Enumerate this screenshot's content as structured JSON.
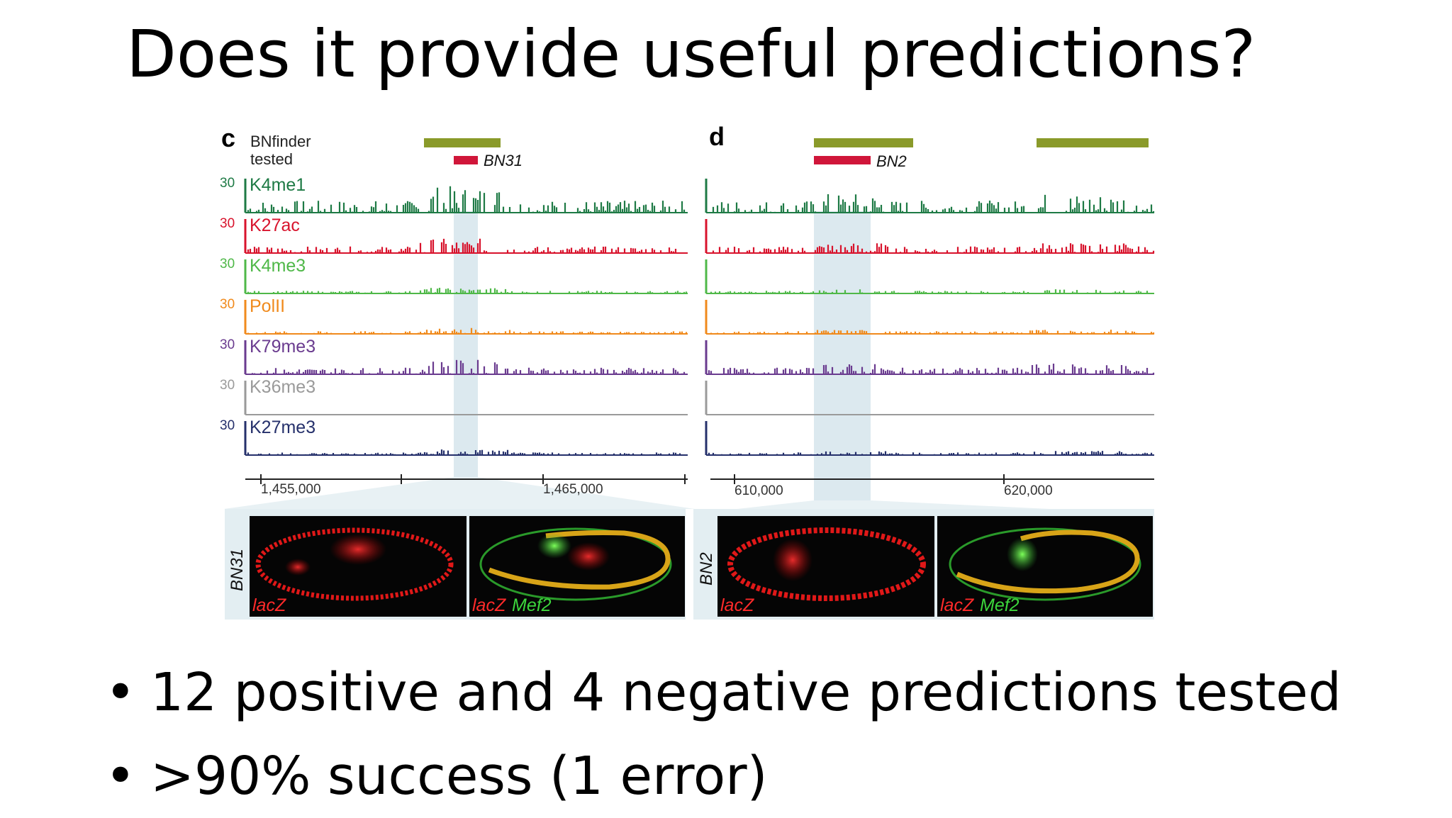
{
  "slide": {
    "title": "Does it provide useful predictions?",
    "bullets": [
      "12 positive and 4 negative predictions tested",
      ">90% success (1 error)"
    ]
  },
  "figure": {
    "legend": {
      "predicted_label": "BNfinder",
      "tested_label": "tested"
    },
    "track_max_label": "30",
    "tracks": [
      {
        "name": "K4me1",
        "color": "#1e7a45",
        "profile": "dense"
      },
      {
        "name": "K27ac",
        "color": "#d8132c",
        "profile": "medium"
      },
      {
        "name": "K4me3",
        "color": "#4fb848",
        "profile": "low"
      },
      {
        "name": "PolII",
        "color": "#f08a1c",
        "profile": "low"
      },
      {
        "name": "K79me3",
        "color": "#6a3b8f",
        "profile": "medium"
      },
      {
        "name": "K36me3",
        "color": "#9a9a9a",
        "profile": "flat"
      },
      {
        "name": "K27me3",
        "color": "#25306b",
        "profile": "low"
      }
    ],
    "panels": [
      {
        "letter": "c",
        "region_label": "BN31",
        "axis_ticks": [
          "1,455,000",
          "1,465,000"
        ],
        "image_labels": [
          [
            "lacZ"
          ],
          [
            "lacZ",
            "Mef2"
          ]
        ]
      },
      {
        "letter": "d",
        "region_label": "BN2",
        "axis_ticks": [
          "610,000",
          "620,000"
        ],
        "image_labels": [
          [
            "lacZ"
          ],
          [
            "lacZ",
            "Mef2"
          ]
        ]
      }
    ],
    "colors": {
      "predicted_bar": "#8a9a2a",
      "tested_bar": "#d0163a",
      "highlight": "#dce9ef",
      "lacZ": "#ff2a2a",
      "Mef2": "#3cd63c"
    }
  }
}
